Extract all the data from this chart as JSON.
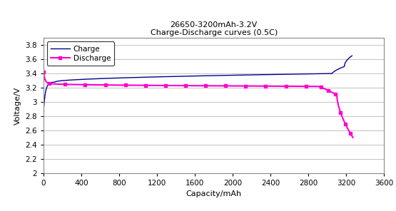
{
  "title_line1": "26650-3200mAh-3.2V",
  "title_line2": "Charge-Discharge curves (0.5C)",
  "xlabel": "Capacity/mAh",
  "ylabel": "Voltage/V",
  "xlim": [
    0,
    3600
  ],
  "ylim": [
    2.0,
    3.9
  ],
  "xticks": [
    0,
    400,
    800,
    1200,
    1600,
    2000,
    2400,
    2800,
    3200,
    3600
  ],
  "yticks": [
    2.0,
    2.2,
    2.4,
    2.6,
    2.8,
    3.0,
    3.2,
    3.4,
    3.6,
    3.8
  ],
  "ytick_labels": [
    "2",
    "2.2",
    "2.4",
    "2.6",
    "2.8",
    "3",
    "3.2",
    "3.4",
    "3.6",
    "3.8"
  ],
  "charge_color": "#00008B",
  "discharge_color": "#FF00CC",
  "background_color": "#FFFFFF",
  "legend_charge": "Charge",
  "legend_discharge": "Discharge"
}
